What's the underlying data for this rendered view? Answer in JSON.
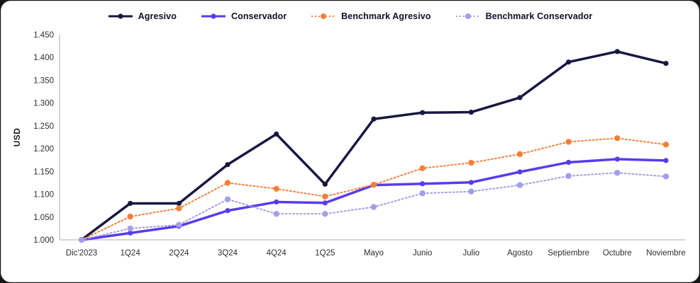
{
  "chart_data": {
    "type": "line",
    "title": "",
    "ylabel": "USD",
    "xlabel": "",
    "ylim": [
      1.0,
      1.45
    ],
    "grid": false,
    "legend_position": "top-center",
    "axis_color": "#c8c8c8",
    "tick_text_color": "#2d2d2d",
    "yticks": [
      "1.450",
      "1.400",
      "1.350",
      "1.300",
      "1.250",
      "1.200",
      "1.150",
      "1.100",
      "1.050",
      "1.000"
    ],
    "ytick_values": [
      1.45,
      1.4,
      1.35,
      1.3,
      1.25,
      1.2,
      1.15,
      1.1,
      1.05,
      1.0
    ],
    "categories": [
      "Dic'2023",
      "1Q24",
      "2Q24",
      "3Q24",
      "4Q24",
      "1Q25",
      "Mayo",
      "Junio",
      "Julio",
      "Agosto",
      "Septiembre",
      "Octubre",
      "Noviembre"
    ],
    "series": [
      {
        "name": "Agresivo",
        "key": "agresivo",
        "color": "#171740",
        "line_style": "solid",
        "line_width": 3.5,
        "marker_radius": 3.6,
        "values": [
          1.0,
          1.08,
          1.08,
          1.165,
          1.232,
          1.122,
          1.265,
          1.279,
          1.28,
          1.312,
          1.39,
          1.413,
          1.387
        ]
      },
      {
        "name": "Conservador",
        "key": "conservador",
        "color": "#5a3bec",
        "line_style": "solid",
        "line_width": 3.5,
        "marker_radius": 3.6,
        "values": [
          1.0,
          1.015,
          1.03,
          1.064,
          1.083,
          1.081,
          1.12,
          1.123,
          1.126,
          1.149,
          1.17,
          1.177,
          1.174
        ]
      },
      {
        "name": "Benchmark Agresivo",
        "key": "benchmark-agresivo",
        "color": "#f6803a",
        "line_style": "dotted",
        "line_width": 2,
        "marker_radius": 4.2,
        "values": [
          1.0,
          1.051,
          1.069,
          1.125,
          1.112,
          1.095,
          1.121,
          1.157,
          1.169,
          1.188,
          1.215,
          1.223,
          1.209
        ]
      },
      {
        "name": "Benchmark Conservador",
        "key": "benchmark-conservador",
        "color": "#a29fe9",
        "line_style": "dotted",
        "line_width": 2,
        "marker_radius": 4.2,
        "values": [
          1.0,
          1.025,
          1.033,
          1.089,
          1.057,
          1.057,
          1.072,
          1.102,
          1.106,
          1.12,
          1.14,
          1.147,
          1.139
        ]
      }
    ]
  }
}
